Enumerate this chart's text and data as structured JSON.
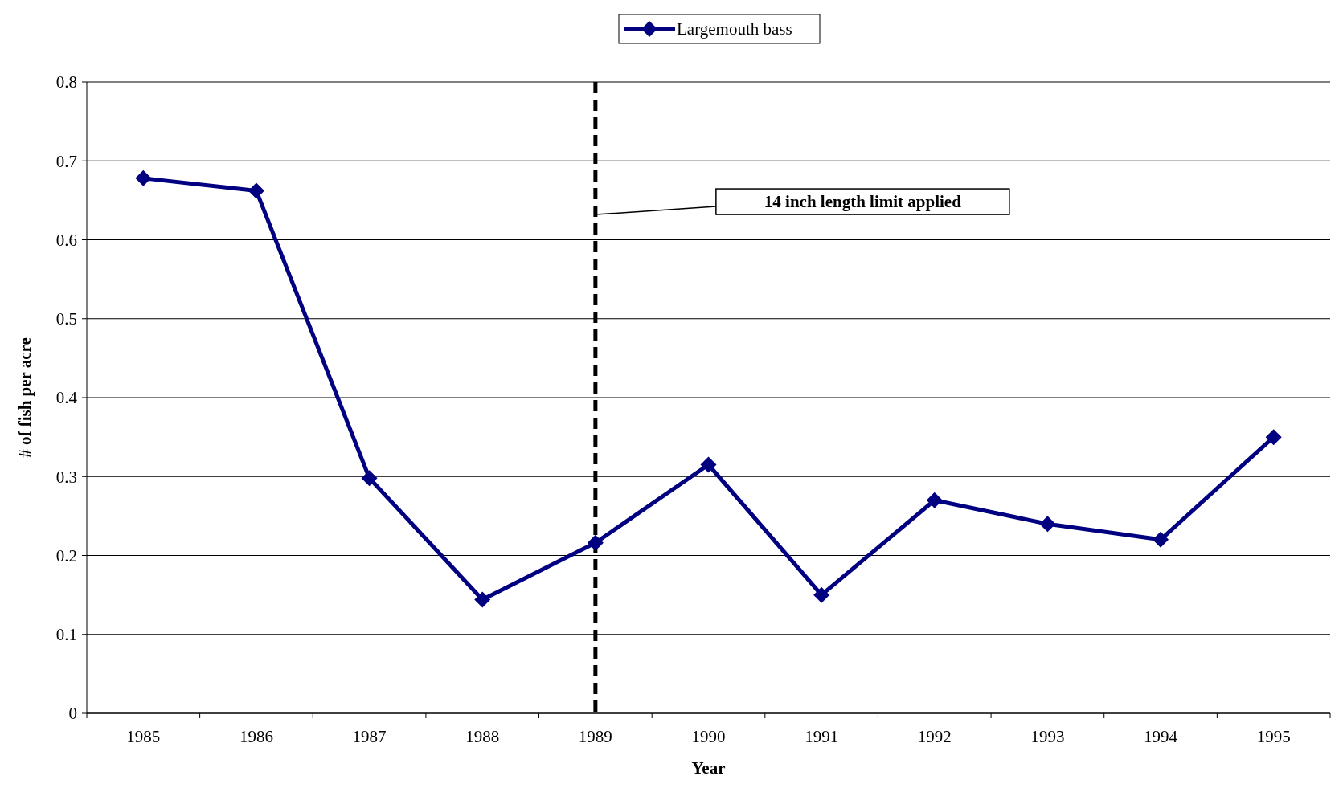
{
  "chart_data": {
    "type": "line",
    "xlabel": "Year",
    "ylabel": "# of fish per acre",
    "categories": [
      "1985",
      "1986",
      "1987",
      "1988",
      "1989",
      "1990",
      "1991",
      "1992",
      "1993",
      "1994",
      "1995"
    ],
    "series": [
      {
        "name": "Largemouth bass",
        "color": "#000080",
        "values": [
          0.678,
          0.662,
          0.298,
          0.144,
          0.216,
          0.315,
          0.15,
          0.27,
          0.24,
          0.22,
          0.35
        ]
      }
    ],
    "ylim": [
      0,
      0.8
    ],
    "yticks": [
      0,
      0.1,
      0.2,
      0.3,
      0.4,
      0.5,
      0.6,
      0.7,
      0.8
    ],
    "grid": "y",
    "legend": "top",
    "marker": "diamond",
    "line_style": "solid",
    "ref_lines": [
      {
        "axis": "x",
        "value": "1989",
        "color": "#000000",
        "line_style": "dashed"
      }
    ],
    "annotations": [
      "14 inch length limit applied"
    ]
  }
}
